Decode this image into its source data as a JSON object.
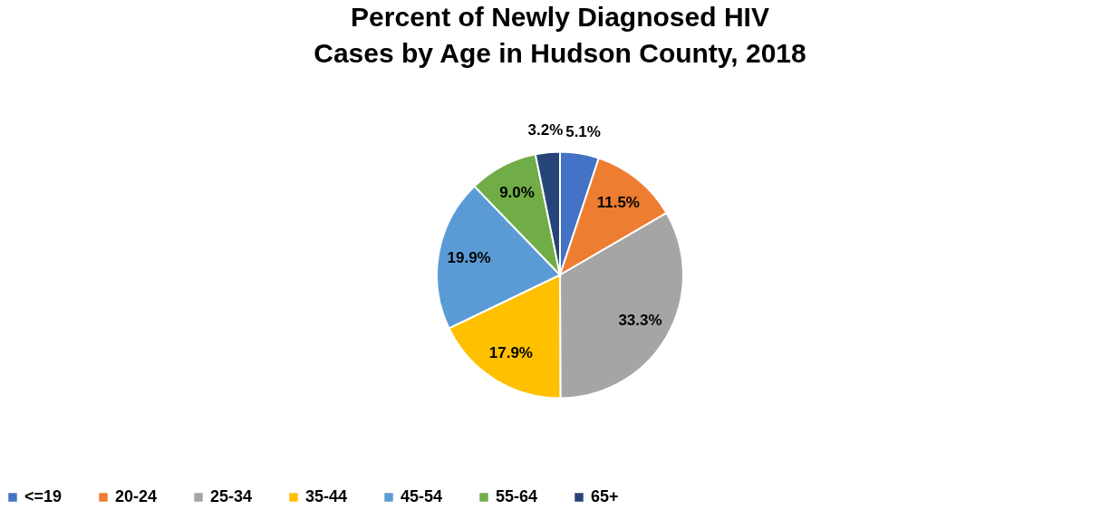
{
  "chart_data": {
    "type": "pie",
    "title": "Percent of Newly Diagnosed HIV Cases by Age in Hudson County, 2018",
    "categories": [
      "<=19",
      "20-24",
      "25-34",
      "35-44",
      "45-54",
      "55-64",
      "65+"
    ],
    "values": [
      5.1,
      11.5,
      33.3,
      17.9,
      19.9,
      9.0,
      3.2
    ],
    "colors": [
      "#4472c4",
      "#ed7d31",
      "#a5a5a5",
      "#ffc000",
      "#5b9bd5",
      "#70ad47",
      "#264478"
    ],
    "value_labels": [
      "5.1%",
      "11.5%",
      "33.3%",
      "17.9%",
      "19.9%",
      "9.0%",
      "3.2%"
    ],
    "legend": "bottom"
  }
}
